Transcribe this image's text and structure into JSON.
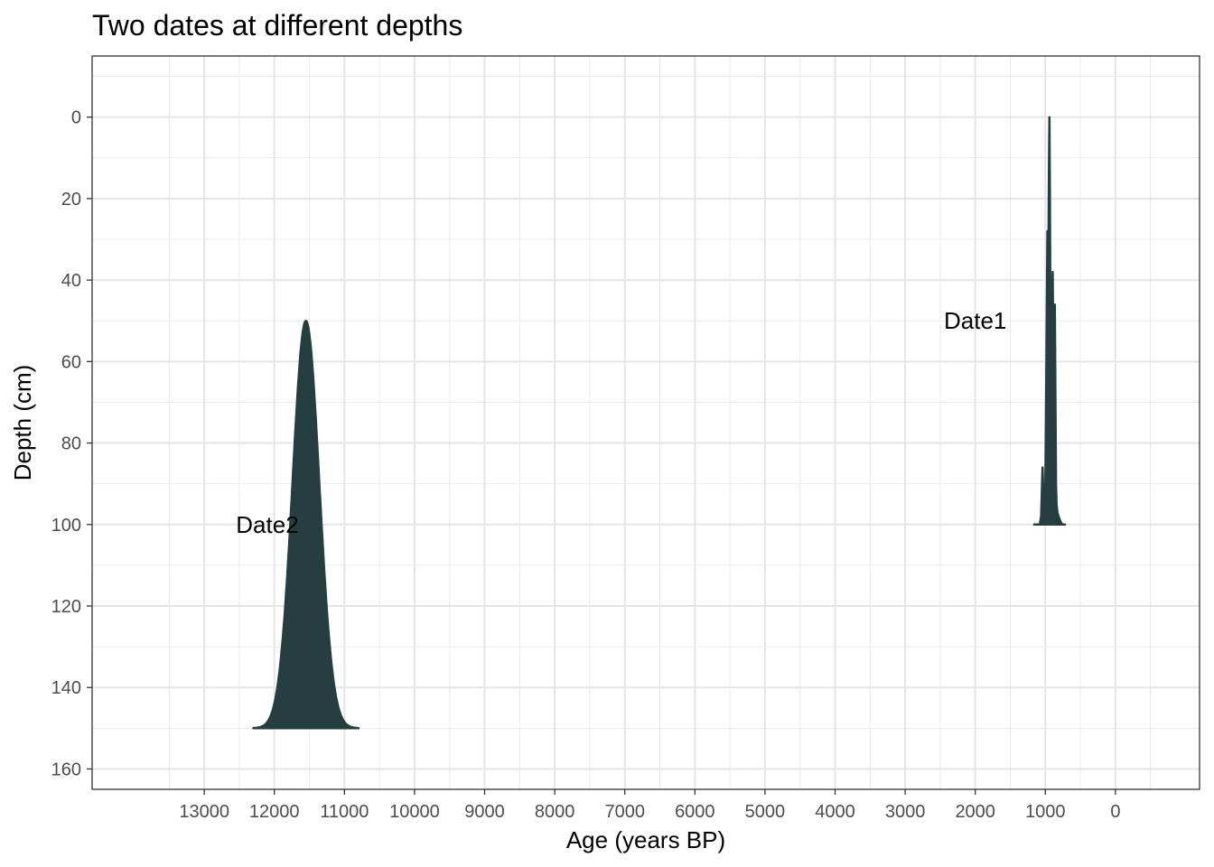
{
  "chart_data": {
    "type": "area",
    "title": "Two dates at different depths",
    "xlabel": "Age (years BP)",
    "ylabel": "Depth (cm)",
    "x_reversed": true,
    "y_reversed": true,
    "xlim": [
      14600,
      -1200
    ],
    "ylim": [
      -15,
      165
    ],
    "xticks": [
      13000,
      12000,
      11000,
      10000,
      9000,
      8000,
      7000,
      6000,
      5000,
      4000,
      3000,
      2000,
      1000,
      0
    ],
    "xtick_labels": [
      "13000",
      "12000",
      "11000",
      "10000",
      "9000",
      "8000",
      "7000",
      "6000",
      "5000",
      "4000",
      "3000",
      "2000",
      "1000",
      "0"
    ],
    "yticks": [
      0,
      20,
      40,
      60,
      80,
      100,
      120,
      140,
      160
    ],
    "ytick_labels": [
      "0",
      "20",
      "40",
      "60",
      "80",
      "100",
      "120",
      "140",
      "160"
    ],
    "grid": true,
    "fill_color": "#253f40",
    "series": [
      {
        "name": "Date1",
        "label": "Date1",
        "label_x": 2000,
        "label_y": 50,
        "baseline_depth": 100,
        "age_range": [
          1160,
          720
        ],
        "profile": [
          [
            1160,
            100
          ],
          [
            1110,
            100
          ],
          [
            1080,
            100
          ],
          [
            1060,
            98
          ],
          [
            1050,
            92
          ],
          [
            1040,
            86
          ],
          [
            1030,
            92
          ],
          [
            1020,
            99
          ],
          [
            1010,
            97
          ],
          [
            1000,
            90
          ],
          [
            990,
            70
          ],
          [
            980,
            50
          ],
          [
            970,
            28
          ],
          [
            962,
            45
          ],
          [
            955,
            30
          ],
          [
            948,
            12
          ],
          [
            942,
            0
          ],
          [
            936,
            18
          ],
          [
            928,
            50
          ],
          [
            920,
            60
          ],
          [
            912,
            65
          ],
          [
            904,
            50
          ],
          [
            896,
            38
          ],
          [
            888,
            55
          ],
          [
            880,
            70
          ],
          [
            872,
            56
          ],
          [
            864,
            46
          ],
          [
            856,
            70
          ],
          [
            848,
            90
          ],
          [
            840,
            95
          ],
          [
            828,
            97
          ],
          [
            812,
            98
          ],
          [
            790,
            99
          ],
          [
            760,
            100
          ],
          [
            720,
            100
          ]
        ]
      },
      {
        "name": "Date2",
        "label": "Date2",
        "label_x": 12100,
        "label_y": 100,
        "baseline_depth": 150,
        "age_range": [
          12300,
          10800
        ],
        "peak_age": 11550,
        "peak_depth": 50,
        "sigma_years": 190
      }
    ]
  }
}
